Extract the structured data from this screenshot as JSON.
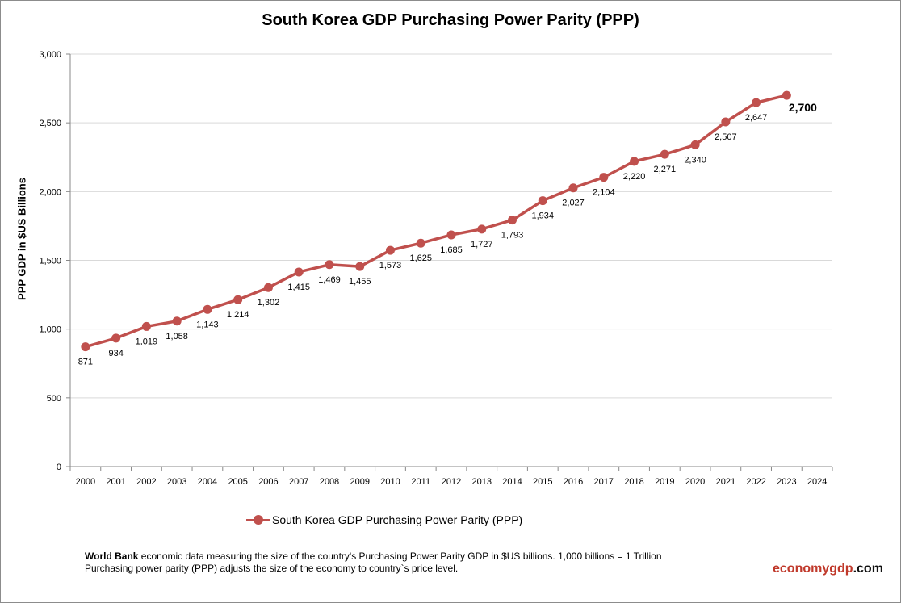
{
  "chart_data": {
    "type": "line",
    "title": "South Korea GDP Purchasing Power Parity (PPP)",
    "ylabel": "PPP GDP in $US Billions",
    "xlabel": "",
    "x": [
      "2000",
      "2001",
      "2002",
      "2003",
      "2004",
      "2005",
      "2006",
      "2007",
      "2008",
      "2009",
      "2010",
      "2011",
      "2012",
      "2013",
      "2014",
      "2015",
      "2016",
      "2017",
      "2018",
      "2019",
      "2020",
      "2021",
      "2022",
      "2023"
    ],
    "x_ticks": [
      "2000",
      "2001",
      "2002",
      "2003",
      "2004",
      "2005",
      "2006",
      "2007",
      "2008",
      "2009",
      "2010",
      "2011",
      "2012",
      "2013",
      "2014",
      "2015",
      "2016",
      "2017",
      "2018",
      "2019",
      "2020",
      "2021",
      "2022",
      "2023",
      "2024"
    ],
    "series": [
      {
        "name": "South Korea GDP Purchasing Power Parity (PPP)",
        "values": [
          871,
          934,
          1019,
          1058,
          1143,
          1214,
          1302,
          1415,
          1469,
          1455,
          1573,
          1625,
          1685,
          1727,
          1793,
          1934,
          2027,
          2104,
          2220,
          2271,
          2340,
          2507,
          2647,
          2700
        ],
        "labels": [
          "871",
          "934",
          "1,019",
          "1,058",
          "1,143",
          "1,214",
          "1,302",
          "1,415",
          "1,469",
          "1,455",
          "1,573",
          "1,625",
          "1,685",
          "1,727",
          "1,793",
          "1,934",
          "2,027",
          "2,104",
          "2,220",
          "2,271",
          "2,340",
          "2,507",
          "2,647",
          "2,700"
        ],
        "color": "#c0504d"
      }
    ],
    "y_ticks": [
      "0",
      "500",
      "1,000",
      "1,500",
      "2,000",
      "2,500",
      "3,000"
    ],
    "ylim": [
      0,
      3000
    ],
    "grid": true,
    "legend_position": "bottom"
  },
  "footnote": {
    "source": "World Bank",
    "line1_rest": " economic data  measuring the size of the country's Purchasing Power Parity GDP in $US billions. 1,000 billions = 1 Trillion",
    "line2": "Purchasing power parity (PPP) adjusts the size of the economy to country`s price level."
  },
  "brand": {
    "part1": "economy",
    "part2": "gdp",
    "part3": ".com"
  },
  "colors": {
    "series": "#c0504d",
    "grid": "#d9d9d9",
    "brand": "#c0392b"
  }
}
